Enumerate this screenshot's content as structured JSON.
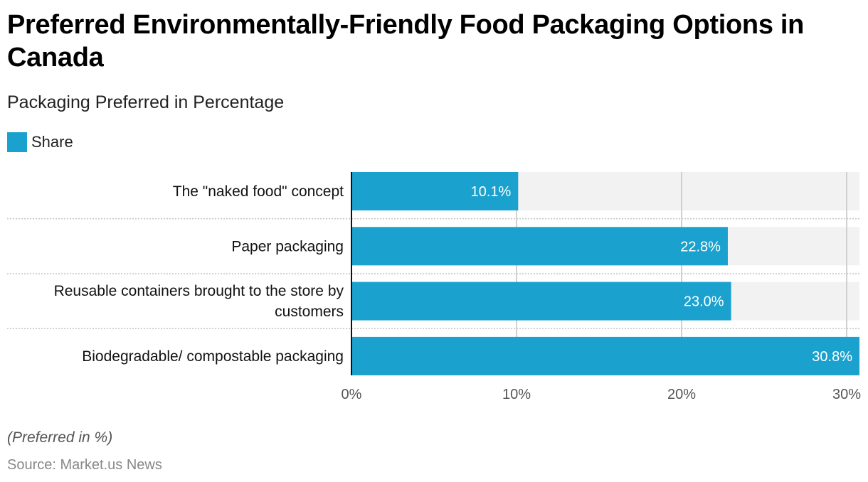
{
  "chart_data": {
    "type": "bar",
    "orientation": "horizontal",
    "title": "Preferred Environmentally-Friendly Food Packaging Options in Canada",
    "subtitle": "Packaging Preferred in Percentage",
    "legend": [
      {
        "name": "Share",
        "color": "#1ba1cd"
      }
    ],
    "legend_placement": "top-left",
    "categories": [
      "The \"naked food\" concept",
      "Paper packaging",
      "Reusable containers brought to the store by customers",
      "Biodegradable/ compostable packaging"
    ],
    "category_label_lines": [
      [
        "The \"naked food\" concept"
      ],
      [
        "Paper packaging"
      ],
      [
        "Reusable containers brought to the store by",
        "customers"
      ],
      [
        "Biodegradable/ compostable packaging"
      ]
    ],
    "series": [
      {
        "name": "Share",
        "values": [
          10.1,
          22.8,
          23.0,
          30.8
        ]
      }
    ],
    "value_labels": [
      "10.1%",
      "22.8%",
      "23.0%",
      "30.8%"
    ],
    "xlim": [
      0,
      30.8
    ],
    "xticks": [
      0,
      10,
      20,
      30
    ],
    "xtick_labels": [
      "0%",
      "10%",
      "20%",
      "30%"
    ],
    "xlabel": "",
    "ylabel": "",
    "grid": true,
    "colors": {
      "bar": "#1ba1cd",
      "track": "#f2f2f2",
      "grid": "#d0d0d0",
      "separator": "#c4c4c4"
    }
  },
  "footer": {
    "note": "(Preferred in %)",
    "source": "Source: Market.us News"
  }
}
